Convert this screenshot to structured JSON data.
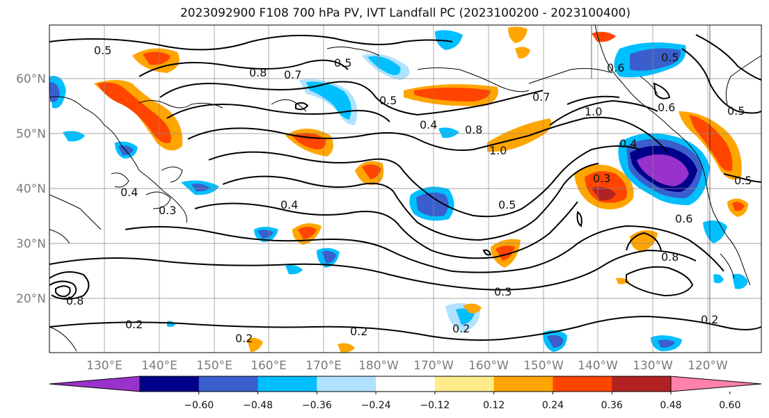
{
  "title": "2023092900 F108 700 hPa PV, IVT Landfall PC (2023100200 - 2023100400)",
  "lat_labels": [
    "60°N",
    "50°N",
    "40°N",
    "30°N",
    "20°N"
  ],
  "lon_labels": [
    "130°E",
    "140°E",
    "150°E",
    "160°E",
    "170°E",
    "180°W",
    "170°W",
    "160°W",
    "150°W",
    "140°W",
    "130°W",
    "120°W"
  ],
  "colorbar": {
    "colors": [
      "#9932cc",
      "#00008b",
      "#3a5fcd",
      "#00bfff",
      "#b0e2ff",
      "#ffffff",
      "#ffec8b",
      "#ffa500",
      "#ff4500",
      "#b22222",
      "#ff82ab"
    ],
    "labels": [
      "−0.60",
      "−0.48",
      "−0.36",
      "−0.24",
      "−0.12",
      "0.12",
      "0.24",
      "0.36",
      "0.48",
      "0.60"
    ]
  },
  "contour_labels": [
    "0.5",
    "0.8",
    "0.7",
    "0.5",
    "0.5",
    "0.4",
    "0.8",
    "1.0",
    "0.7",
    "1.0",
    "0.4",
    "0.5",
    "0.3",
    "0.6",
    "0.4",
    "0.2",
    "0.2",
    "0.2",
    "0.2",
    "0.3",
    "0.8",
    "0.6",
    "0.5",
    "0.2",
    "0.4",
    "0.5",
    "0.6",
    "0.5",
    "0.3",
    "0.8"
  ]
}
